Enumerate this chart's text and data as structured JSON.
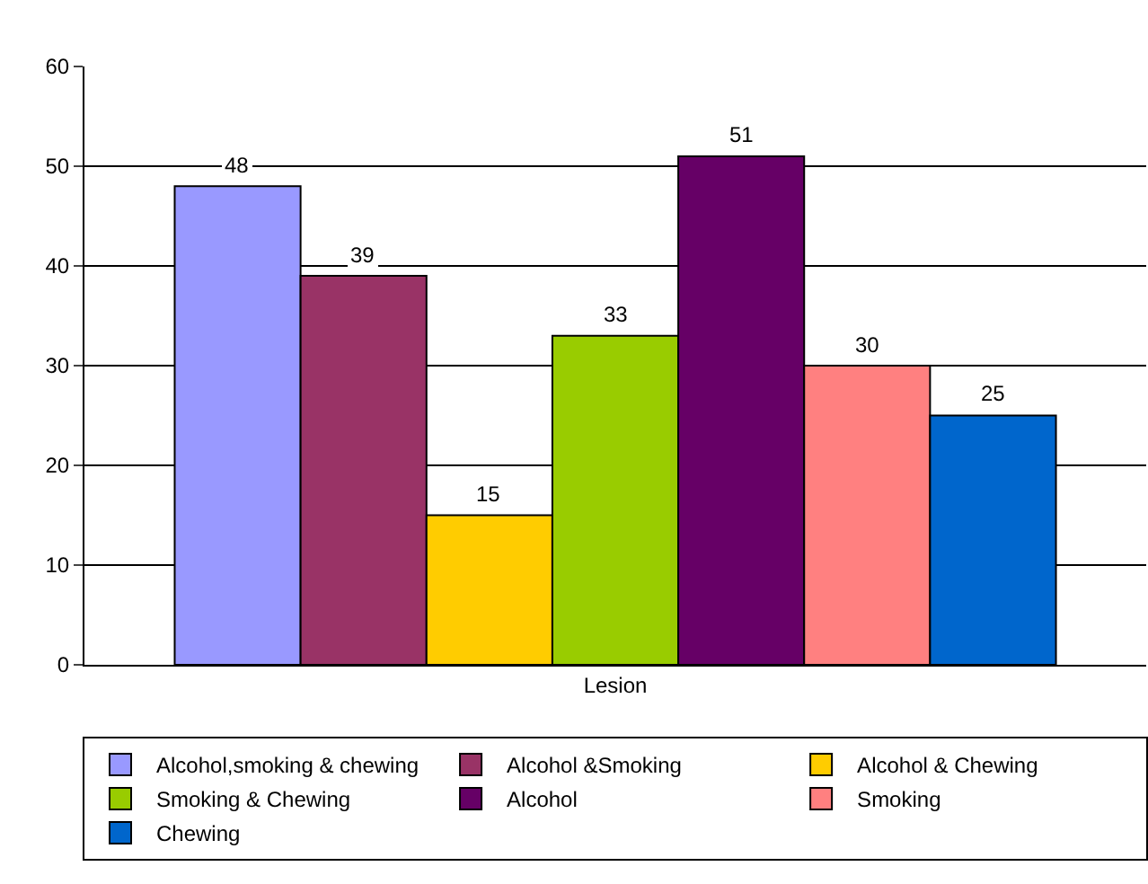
{
  "chart_data": {
    "type": "bar",
    "categories": [
      "Lesion"
    ],
    "series": [
      {
        "name": "Alcohol,smoking & chewing",
        "color": "#9999ff",
        "values": [
          48
        ]
      },
      {
        "name": "Alcohol &Smoking",
        "color": "#993366",
        "values": [
          39
        ]
      },
      {
        "name": "Alcohol & Chewing",
        "color": "#ffcc00",
        "values": [
          15
        ]
      },
      {
        "name": "Smoking & Chewing",
        "color": "#99cc00",
        "values": [
          33
        ]
      },
      {
        "name": "Alcohol",
        "color": "#660066",
        "values": [
          51
        ]
      },
      {
        "name": "Smoking",
        "color": "#ff8080",
        "values": [
          30
        ]
      },
      {
        "name": "Chewing",
        "color": "#0066cc",
        "values": [
          25
        ]
      }
    ],
    "ylim": [
      0,
      60
    ],
    "yticks": [
      0,
      10,
      20,
      30,
      40,
      50,
      60
    ],
    "grid": "y",
    "legend": "bottom",
    "data_labels": true
  }
}
